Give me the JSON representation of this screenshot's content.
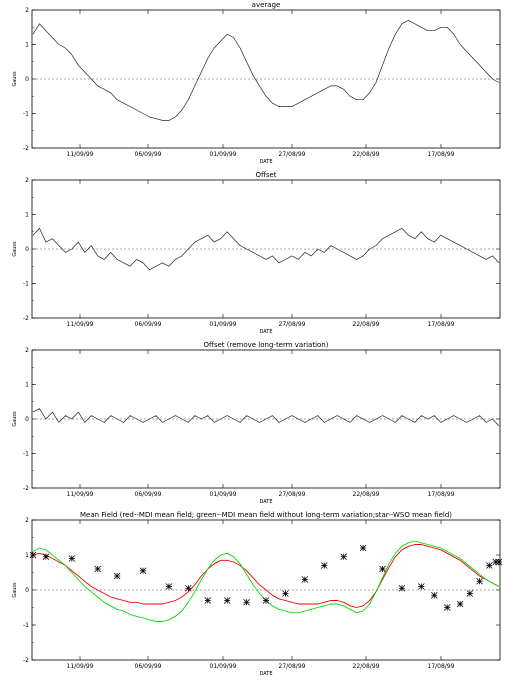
{
  "chart_data": [
    {
      "type": "line",
      "title": "average",
      "xlabel": "DATE",
      "ylabel": "Gauss",
      "ylim": [
        -2,
        2
      ],
      "yticks": [
        -2,
        -1,
        0,
        1,
        2
      ],
      "xticks": [
        "11/09/99",
        "06/09/99",
        "01/09/99",
        "27/08/99",
        "22/08/99",
        "17/08/99"
      ],
      "reference_line": 0,
      "series": [
        {
          "values": [
            1.3,
            1.6,
            1.4,
            1.2,
            1.0,
            0.9,
            0.7,
            0.4,
            0.2,
            0.0,
            -0.2,
            -0.3,
            -0.4,
            -0.6,
            -0.7,
            -0.8,
            -0.9,
            -1.0,
            -1.1,
            -1.15,
            -1.2,
            -1.2,
            -1.1,
            -0.9,
            -0.6,
            -0.2,
            0.2,
            0.6,
            0.9,
            1.1,
            1.3,
            1.2,
            0.9,
            0.5,
            0.1,
            -0.2,
            -0.5,
            -0.7,
            -0.8,
            -0.8,
            -0.8,
            -0.7,
            -0.6,
            -0.5,
            -0.4,
            -0.3,
            -0.2,
            -0.2,
            -0.3,
            -0.5,
            -0.6,
            -0.6,
            -0.4,
            -0.1,
            0.4,
            0.9,
            1.3,
            1.6,
            1.7,
            1.6,
            1.5,
            1.4,
            1.4,
            1.5,
            1.5,
            1.3,
            1.0,
            0.8,
            0.6,
            0.4,
            0.2,
            0.0,
            -0.1
          ]
        }
      ]
    },
    {
      "type": "line",
      "title": "Offset",
      "xlabel": "DATE",
      "ylabel": "Gauss",
      "ylim": [
        -2,
        2
      ],
      "yticks": [
        -2,
        -1,
        0,
        1,
        2
      ],
      "xticks": [
        "11/09/99",
        "06/09/99",
        "01/09/99",
        "27/08/99",
        "22/08/99",
        "17/08/99"
      ],
      "reference_line": 0,
      "series": [
        {
          "values": [
            0.4,
            0.6,
            0.2,
            0.3,
            0.1,
            -0.1,
            0.0,
            0.2,
            -0.1,
            0.1,
            -0.2,
            -0.3,
            -0.1,
            -0.3,
            -0.4,
            -0.5,
            -0.3,
            -0.4,
            -0.6,
            -0.5,
            -0.4,
            -0.5,
            -0.3,
            -0.2,
            0.0,
            0.2,
            0.3,
            0.4,
            0.2,
            0.3,
            0.5,
            0.3,
            0.1,
            0.0,
            -0.1,
            -0.2,
            -0.3,
            -0.2,
            -0.4,
            -0.3,
            -0.2,
            -0.3,
            -0.1,
            -0.2,
            0.0,
            -0.1,
            0.1,
            0.0,
            -0.1,
            -0.2,
            -0.3,
            -0.2,
            0.0,
            0.1,
            0.3,
            0.4,
            0.5,
            0.6,
            0.4,
            0.3,
            0.5,
            0.3,
            0.2,
            0.4,
            0.3,
            0.2,
            0.1,
            0.0,
            -0.1,
            -0.2,
            -0.3,
            -0.2,
            -0.4
          ]
        }
      ]
    },
    {
      "type": "line",
      "title": "Offset (remove long-term variation)",
      "xlabel": "DATE",
      "ylabel": "Gauss",
      "ylim": [
        -2,
        2
      ],
      "yticks": [
        -2,
        -1,
        0,
        1,
        2
      ],
      "xticks": [
        "11/09/99",
        "06/09/99",
        "01/09/99",
        "27/08/99",
        "22/08/99",
        "17/08/99"
      ],
      "reference_line": 0,
      "series": [
        {
          "values": [
            0.2,
            0.3,
            0.0,
            0.2,
            -0.1,
            0.1,
            0.0,
            0.2,
            -0.1,
            0.1,
            0.0,
            -0.1,
            0.1,
            0.0,
            -0.1,
            0.1,
            0.0,
            -0.1,
            0.0,
            0.1,
            -0.1,
            0.0,
            0.1,
            0.0,
            -0.1,
            0.1,
            0.0,
            0.1,
            -0.1,
            0.0,
            0.1,
            0.0,
            -0.1,
            0.1,
            0.0,
            -0.1,
            0.0,
            0.1,
            -0.1,
            0.0,
            0.1,
            0.0,
            -0.1,
            0.0,
            0.1,
            -0.1,
            0.0,
            0.1,
            0.0,
            -0.1,
            0.1,
            0.0,
            -0.1,
            0.0,
            0.1,
            0.0,
            -0.1,
            0.1,
            0.0,
            -0.1,
            0.1,
            0.0,
            0.1,
            -0.1,
            0.0,
            0.1,
            0.0,
            -0.1,
            0.0,
            0.1,
            -0.1,
            0.0,
            -0.2
          ]
        }
      ]
    },
    {
      "type": "line",
      "title": "Mean Field (red--MDI mean field; green--MDI mean field without long-term variation;star--WSO mean field)",
      "xlabel": "DATE",
      "ylabel": "Gauss",
      "ylim": [
        -2,
        2
      ],
      "yticks": [
        -2,
        -1,
        0,
        1,
        2
      ],
      "xticks": [
        "11/09/99",
        "06/09/99",
        "01/09/99",
        "27/08/99",
        "22/08/99",
        "17/08/99"
      ],
      "reference_line": 0,
      "series": [
        {
          "color": "#ee0000",
          "values": [
            1.0,
            1.05,
            1.0,
            0.9,
            0.8,
            0.7,
            0.55,
            0.4,
            0.25,
            0.1,
            0.0,
            -0.1,
            -0.2,
            -0.25,
            -0.3,
            -0.35,
            -0.35,
            -0.4,
            -0.4,
            -0.4,
            -0.4,
            -0.35,
            -0.3,
            -0.2,
            -0.05,
            0.15,
            0.4,
            0.6,
            0.75,
            0.85,
            0.85,
            0.8,
            0.7,
            0.55,
            0.35,
            0.15,
            0.0,
            -0.15,
            -0.25,
            -0.3,
            -0.35,
            -0.4,
            -0.4,
            -0.4,
            -0.4,
            -0.35,
            -0.3,
            -0.3,
            -0.35,
            -0.45,
            -0.5,
            -0.45,
            -0.3,
            -0.05,
            0.3,
            0.65,
            0.95,
            1.15,
            1.25,
            1.3,
            1.3,
            1.25,
            1.2,
            1.15,
            1.05,
            0.95,
            0.85,
            0.7,
            0.55,
            0.4,
            0.3,
            0.2,
            0.1
          ]
        },
        {
          "color": "#00dd00",
          "values": [
            1.1,
            1.2,
            1.15,
            1.0,
            0.85,
            0.7,
            0.5,
            0.3,
            0.1,
            -0.05,
            -0.2,
            -0.35,
            -0.45,
            -0.55,
            -0.6,
            -0.7,
            -0.75,
            -0.8,
            -0.85,
            -0.9,
            -0.9,
            -0.85,
            -0.75,
            -0.6,
            -0.35,
            -0.05,
            0.3,
            0.6,
            0.85,
            1.0,
            1.05,
            0.95,
            0.75,
            0.45,
            0.15,
            -0.1,
            -0.3,
            -0.45,
            -0.55,
            -0.6,
            -0.65,
            -0.65,
            -0.6,
            -0.55,
            -0.5,
            -0.45,
            -0.4,
            -0.4,
            -0.45,
            -0.55,
            -0.65,
            -0.6,
            -0.4,
            -0.05,
            0.35,
            0.75,
            1.05,
            1.25,
            1.35,
            1.4,
            1.35,
            1.3,
            1.25,
            1.2,
            1.1,
            1.0,
            0.9,
            0.75,
            0.6,
            0.45,
            0.3,
            0.2,
            0.1
          ]
        }
      ],
      "stars": [
        {
          "x": 0.0,
          "y": 1.0
        },
        {
          "x": 2.0,
          "y": 0.95
        },
        {
          "x": 6.0,
          "y": 0.9
        },
        {
          "x": 10.0,
          "y": 0.6
        },
        {
          "x": 13.0,
          "y": 0.4
        },
        {
          "x": 17.0,
          "y": 0.55
        },
        {
          "x": 21.0,
          "y": 0.1
        },
        {
          "x": 24.0,
          "y": 0.05
        },
        {
          "x": 27.0,
          "y": -0.3
        },
        {
          "x": 30.0,
          "y": -0.3
        },
        {
          "x": 33.0,
          "y": -0.35
        },
        {
          "x": 36.0,
          "y": -0.3
        },
        {
          "x": 39.0,
          "y": -0.1
        },
        {
          "x": 42.0,
          "y": 0.3
        },
        {
          "x": 45.0,
          "y": 0.7
        },
        {
          "x": 48.0,
          "y": 0.95
        },
        {
          "x": 51.0,
          "y": 1.2
        },
        {
          "x": 54.0,
          "y": 0.6
        },
        {
          "x": 57.0,
          "y": 0.05
        },
        {
          "x": 60.0,
          "y": 0.1
        },
        {
          "x": 62.0,
          "y": -0.15
        },
        {
          "x": 64.0,
          "y": -0.5
        },
        {
          "x": 66.0,
          "y": -0.4
        },
        {
          "x": 67.5,
          "y": -0.1
        },
        {
          "x": 69.0,
          "y": 0.25
        },
        {
          "x": 70.5,
          "y": 0.7
        },
        {
          "x": 71.5,
          "y": 0.8
        },
        {
          "x": 72.0,
          "y": 0.8
        }
      ]
    }
  ]
}
